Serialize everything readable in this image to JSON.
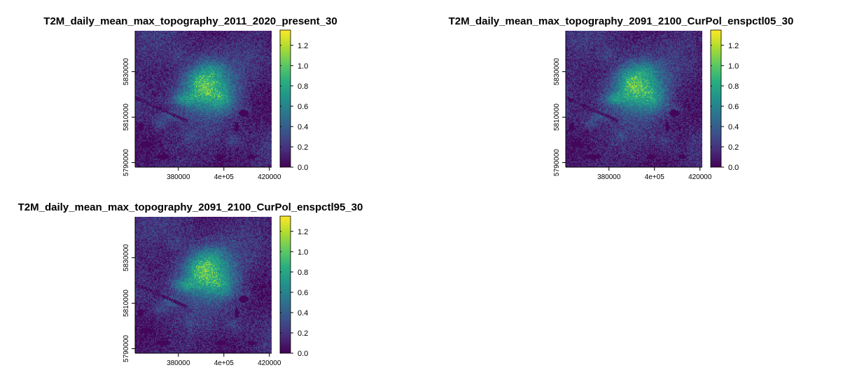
{
  "chart_data": [
    {
      "type": "heatmap",
      "title": "T2M_daily_mean_max_topography_2011_2020_present_30",
      "xlabel": "",
      "ylabel": "",
      "x_ticks": [
        380000,
        400000,
        420000
      ],
      "x_tick_labels": [
        "380000",
        "4e+05",
        "420000"
      ],
      "y_ticks": [
        5790000,
        5810000,
        5830000
      ],
      "y_tick_labels": [
        "5790000",
        "5810000",
        "5830000"
      ],
      "xlim": [
        361000,
        421000
      ],
      "ylim": [
        5788000,
        5848000
      ],
      "colorbar": {
        "ticks": [
          0.0,
          0.2,
          0.4,
          0.6,
          0.8,
          1.0,
          1.2
        ],
        "tick_labels": [
          "0.0",
          "0.2",
          "0.4",
          "0.6",
          "0.8",
          "1.0",
          "1.2"
        ],
        "range": [
          0.0,
          1.35
        ],
        "palette": "viridis"
      },
      "grid": false
    },
    {
      "type": "heatmap",
      "title": "T2M_daily_mean_max_topography_2091_2100_CurPol_enspctl05_30",
      "xlabel": "",
      "ylabel": "",
      "x_ticks": [
        380000,
        400000,
        420000
      ],
      "x_tick_labels": [
        "380000",
        "4e+05",
        "420000"
      ],
      "y_ticks": [
        5790000,
        5810000,
        5830000
      ],
      "y_tick_labels": [
        "5790000",
        "5810000",
        "5830000"
      ],
      "xlim": [
        361000,
        421000
      ],
      "ylim": [
        5788000,
        5848000
      ],
      "colorbar": {
        "ticks": [
          0.0,
          0.2,
          0.4,
          0.6,
          0.8,
          1.0,
          1.2
        ],
        "tick_labels": [
          "0.0",
          "0.2",
          "0.4",
          "0.6",
          "0.8",
          "1.0",
          "1.2"
        ],
        "range": [
          0.0,
          1.35
        ],
        "palette": "viridis"
      },
      "grid": false
    },
    {
      "type": "heatmap",
      "title": "T2M_daily_mean_max_topography_2091_2100_CurPol_enspctl95_30",
      "xlabel": "",
      "ylabel": "",
      "x_ticks": [
        380000,
        400000,
        420000
      ],
      "x_tick_labels": [
        "380000",
        "4e+05",
        "420000"
      ],
      "y_ticks": [
        5790000,
        5810000,
        5830000
      ],
      "y_tick_labels": [
        "5790000",
        "5810000",
        "5830000"
      ],
      "xlim": [
        361000,
        421000
      ],
      "ylim": [
        5788000,
        5848000
      ],
      "colorbar": {
        "ticks": [
          0.0,
          0.2,
          0.4,
          0.6,
          0.8,
          1.0,
          1.2
        ],
        "tick_labels": [
          "0.0",
          "0.2",
          "0.4",
          "0.6",
          "0.8",
          "1.0",
          "1.2"
        ],
        "range": [
          0.0,
          1.35
        ],
        "palette": "viridis"
      },
      "grid": false
    }
  ]
}
